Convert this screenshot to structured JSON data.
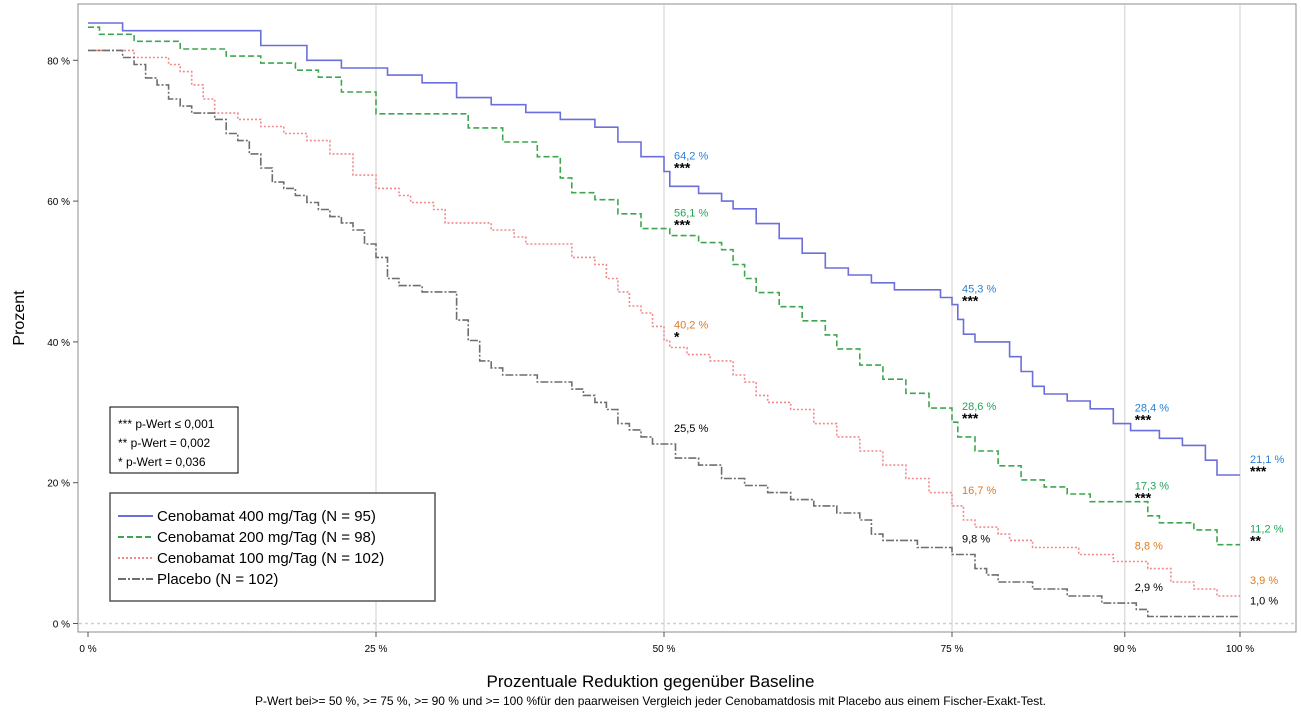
{
  "chart_data": {
    "type": "line",
    "ylabel": "Prozent",
    "xlabel": "Prozentuale Reduktion gegenüber Baseline",
    "footnote": "P-Wert bei>= 50 %, >= 75 %, >= 90 % und >= 100 %für den paarweisen Vergleich jeder Cenobamatdosis mit Placebo aus einem Fischer-Exakt-Test.",
    "x_ticks": [
      {
        "value": 0,
        "label": "0 %"
      },
      {
        "value": 25,
        "label": "25 %"
      },
      {
        "value": 50,
        "label": "50 %"
      },
      {
        "value": 75,
        "label": "75 %"
      },
      {
        "value": 90,
        "label": "90 %"
      },
      {
        "value": 100,
        "label": "100 %"
      }
    ],
    "y_ticks": [
      {
        "value": 0,
        "label": "0 %"
      },
      {
        "value": 20,
        "label": "20 %"
      },
      {
        "value": 40,
        "label": "40 %"
      },
      {
        "value": 60,
        "label": "60 %"
      },
      {
        "value": 80,
        "label": "80 %"
      }
    ],
    "xlim": [
      0,
      100
    ],
    "ylim": [
      0,
      86
    ],
    "vertical_gridlines_at": [
      25,
      50,
      75,
      90,
      100
    ],
    "significance_legend": [
      "*** p-Wert ≤ 0,001",
      "** p-Wert = 0,002",
      "* p-Wert = 0,036"
    ],
    "legend_position": "bottom-left",
    "series": [
      {
        "name": "Cenobamat 400 mg/Tag (N = 95)",
        "color": "#6b6fdb",
        "dash": "solid",
        "points": [
          [
            0,
            85.3
          ],
          [
            3,
            84.2
          ],
          [
            15,
            82.1
          ],
          [
            19,
            80
          ],
          [
            22,
            78.9
          ],
          [
            26,
            77.9
          ],
          [
            29,
            76.8
          ],
          [
            32,
            74.7
          ],
          [
            35,
            73.7
          ],
          [
            38,
            72.6
          ],
          [
            41,
            71.6
          ],
          [
            44,
            70.5
          ],
          [
            46,
            68.4
          ],
          [
            48,
            66.3
          ],
          [
            50,
            64.2
          ],
          [
            50.5,
            62.1
          ],
          [
            53,
            61.1
          ],
          [
            55,
            60
          ],
          [
            56,
            58.9
          ],
          [
            58,
            56.8
          ],
          [
            60,
            54.7
          ],
          [
            62,
            52.6
          ],
          [
            64,
            50.5
          ],
          [
            66,
            49.5
          ],
          [
            68,
            48.4
          ],
          [
            70,
            47.4
          ],
          [
            74,
            46.3
          ],
          [
            75,
            45.3
          ],
          [
            75.5,
            43.2
          ],
          [
            76,
            41.1
          ],
          [
            77,
            40
          ],
          [
            80,
            37.9
          ],
          [
            81,
            35.8
          ],
          [
            82,
            33.7
          ],
          [
            83,
            32.6
          ],
          [
            85,
            31.6
          ],
          [
            87,
            30.5
          ],
          [
            89,
            28.4
          ],
          [
            90,
            28.4
          ],
          [
            90.5,
            27.4
          ],
          [
            93,
            26.3
          ],
          [
            95,
            25.3
          ],
          [
            97,
            23.2
          ],
          [
            98,
            21.1
          ],
          [
            100,
            21.1
          ]
        ]
      },
      {
        "name": "Cenobamat 200 mg/Tag (N = 98)",
        "color": "#3fa64f",
        "dash": "dashed",
        "points": [
          [
            0,
            84.7
          ],
          [
            1,
            83.7
          ],
          [
            4,
            82.7
          ],
          [
            8,
            81.6
          ],
          [
            12,
            80.6
          ],
          [
            15,
            79.6
          ],
          [
            18,
            78.6
          ],
          [
            20,
            77.6
          ],
          [
            22,
            75.5
          ],
          [
            25,
            72.4
          ],
          [
            26,
            72.4
          ],
          [
            30,
            72.4
          ],
          [
            33,
            70.4
          ],
          [
            36,
            68.4
          ],
          [
            39,
            66.3
          ],
          [
            41,
            63.3
          ],
          [
            42,
            61.2
          ],
          [
            44,
            60.2
          ],
          [
            46,
            58.2
          ],
          [
            48,
            56.1
          ],
          [
            50,
            56.1
          ],
          [
            50.5,
            55.1
          ],
          [
            53,
            54.1
          ],
          [
            55,
            53.1
          ],
          [
            56,
            51
          ],
          [
            57,
            49
          ],
          [
            58,
            47
          ],
          [
            60,
            45
          ],
          [
            62,
            43
          ],
          [
            64,
            41
          ],
          [
            65,
            39
          ],
          [
            67,
            36.7
          ],
          [
            69,
            34.7
          ],
          [
            71,
            32.7
          ],
          [
            73,
            30.6
          ],
          [
            75,
            28.6
          ],
          [
            75.5,
            26.5
          ],
          [
            77,
            24.5
          ],
          [
            79,
            22.4
          ],
          [
            81,
            20.4
          ],
          [
            83,
            19.4
          ],
          [
            85,
            18.4
          ],
          [
            87,
            17.3
          ],
          [
            90,
            17.3
          ],
          [
            92,
            15.3
          ],
          [
            93,
            14.3
          ],
          [
            96,
            13.3
          ],
          [
            98,
            11.2
          ],
          [
            100,
            11.2
          ]
        ]
      },
      {
        "name": "Cenobamat 100 mg/Tag (N = 102)",
        "color": "#f08a8a",
        "dash": "dotted",
        "points": [
          [
            0,
            81.4
          ],
          [
            4,
            80.4
          ],
          [
            7,
            79.4
          ],
          [
            8,
            78.4
          ],
          [
            9,
            76.5
          ],
          [
            10,
            74.5
          ],
          [
            11,
            72.5
          ],
          [
            13,
            71.6
          ],
          [
            15,
            70.6
          ],
          [
            17,
            69.6
          ],
          [
            19,
            68.6
          ],
          [
            21,
            66.7
          ],
          [
            23,
            63.7
          ],
          [
            25,
            61.8
          ],
          [
            27,
            60.8
          ],
          [
            28,
            59.8
          ],
          [
            30,
            58.8
          ],
          [
            31,
            56.9
          ],
          [
            33,
            56.9
          ],
          [
            35,
            55.9
          ],
          [
            37,
            54.9
          ],
          [
            38,
            53.9
          ],
          [
            40,
            53.9
          ],
          [
            42,
            52
          ],
          [
            44,
            51
          ],
          [
            45,
            49
          ],
          [
            46,
            47.1
          ],
          [
            47,
            45.1
          ],
          [
            48,
            44.1
          ],
          [
            49,
            42.2
          ],
          [
            50,
            40.2
          ],
          [
            50.5,
            39.2
          ],
          [
            52,
            38.2
          ],
          [
            54,
            37.3
          ],
          [
            56,
            35.3
          ],
          [
            57,
            34.3
          ],
          [
            58,
            32.4
          ],
          [
            59,
            31.4
          ],
          [
            61,
            30.4
          ],
          [
            63,
            28.4
          ],
          [
            65,
            26.5
          ],
          [
            67,
            24.5
          ],
          [
            69,
            22.5
          ],
          [
            71,
            20.6
          ],
          [
            73,
            18.6
          ],
          [
            75,
            16.7
          ],
          [
            76,
            14.7
          ],
          [
            77,
            13.7
          ],
          [
            79,
            12.7
          ],
          [
            80,
            11.8
          ],
          [
            82,
            10.8
          ],
          [
            86,
            9.8
          ],
          [
            89,
            8.8
          ],
          [
            92,
            7.8
          ],
          [
            94,
            5.9
          ],
          [
            96,
            4.9
          ],
          [
            98,
            3.9
          ],
          [
            100,
            3.9
          ]
        ]
      },
      {
        "name": "Placebo (N = 102)",
        "color": "#6e6e6e",
        "dash": "dashdot",
        "points": [
          [
            0,
            81.4
          ],
          [
            3,
            80.4
          ],
          [
            4,
            79.4
          ],
          [
            5,
            77.5
          ],
          [
            6,
            76.5
          ],
          [
            7,
            74.5
          ],
          [
            8,
            73.5
          ],
          [
            9,
            72.5
          ],
          [
            11,
            71.6
          ],
          [
            12,
            69.6
          ],
          [
            13,
            68.6
          ],
          [
            14,
            66.7
          ],
          [
            15,
            64.7
          ],
          [
            16,
            62.7
          ],
          [
            17,
            61.8
          ],
          [
            18,
            60.8
          ],
          [
            19,
            59.8
          ],
          [
            20,
            58.8
          ],
          [
            21,
            57.8
          ],
          [
            22,
            56.9
          ],
          [
            23,
            55.9
          ],
          [
            24,
            53.9
          ],
          [
            25,
            52
          ],
          [
            26,
            49
          ],
          [
            27,
            48
          ],
          [
            29,
            47.1
          ],
          [
            31,
            47.1
          ],
          [
            32,
            43.1
          ],
          [
            33,
            40.2
          ],
          [
            34,
            37.3
          ],
          [
            35,
            36.3
          ],
          [
            36,
            35.3
          ],
          [
            37,
            35.3
          ],
          [
            39,
            34.3
          ],
          [
            41,
            34.3
          ],
          [
            42,
            33.3
          ],
          [
            43,
            32.4
          ],
          [
            44,
            31.4
          ],
          [
            45,
            30.4
          ],
          [
            46,
            28.4
          ],
          [
            47,
            27.5
          ],
          [
            48,
            26.5
          ],
          [
            49,
            25.5
          ],
          [
            50,
            25.5
          ],
          [
            51,
            23.5
          ],
          [
            53,
            22.5
          ],
          [
            55,
            20.6
          ],
          [
            57,
            19.6
          ],
          [
            59,
            18.6
          ],
          [
            61,
            17.6
          ],
          [
            63,
            16.7
          ],
          [
            65,
            15.7
          ],
          [
            67,
            14.7
          ],
          [
            68,
            12.7
          ],
          [
            69,
            11.8
          ],
          [
            72,
            10.8
          ],
          [
            75,
            9.8
          ],
          [
            77,
            7.8
          ],
          [
            78,
            6.9
          ],
          [
            79,
            5.9
          ],
          [
            82,
            4.9
          ],
          [
            85,
            3.9
          ],
          [
            88,
            2.9
          ],
          [
            90,
            2.9
          ],
          [
            91,
            2
          ],
          [
            92,
            1
          ],
          [
            100,
            1
          ]
        ]
      }
    ],
    "annotations": [
      {
        "x": 50,
        "y": 64.2,
        "label": "64,2 %",
        "stars": "***",
        "series": 0
      },
      {
        "x": 50,
        "y": 56.1,
        "label": "56,1 %",
        "stars": "***",
        "series": 1
      },
      {
        "x": 50,
        "y": 40.2,
        "label": "40,2 %",
        "stars": "*",
        "series": 2
      },
      {
        "x": 50,
        "y": 25.5,
        "label": "25,5 %",
        "stars": "",
        "series": 3
      },
      {
        "x": 75,
        "y": 45.3,
        "label": "45,3 %",
        "stars": "***",
        "series": 0
      },
      {
        "x": 75,
        "y": 28.6,
        "label": "28,6 %",
        "stars": "***",
        "series": 1
      },
      {
        "x": 75,
        "y": 16.7,
        "label": "16,7 %",
        "stars": "",
        "series": 2
      },
      {
        "x": 75,
        "y": 9.8,
        "label": "9,8 %",
        "stars": "",
        "series": 3
      },
      {
        "x": 90,
        "y": 28.4,
        "label": "28,4 %",
        "stars": "***",
        "series": 0
      },
      {
        "x": 90,
        "y": 17.3,
        "label": "17,3 %",
        "stars": "***",
        "series": 1
      },
      {
        "x": 90,
        "y": 8.8,
        "label": "8,8 %",
        "stars": "",
        "series": 2
      },
      {
        "x": 90,
        "y": 2.9,
        "label": "2,9 %",
        "stars": "",
        "series": 3
      },
      {
        "x": 100,
        "y": 21.1,
        "label": "21,1 %",
        "stars": "***",
        "series": 0
      },
      {
        "x": 100,
        "y": 11.2,
        "label": "11,2 %",
        "stars": "**",
        "series": 1
      },
      {
        "x": 100,
        "y": 3.9,
        "label": "3,9 %",
        "stars": "",
        "series": 2
      },
      {
        "x": 100,
        "y": 1.0,
        "label": "1,0 %",
        "stars": "",
        "series": 3
      }
    ],
    "annotation_colors": [
      "#2a7fd4",
      "#22a559",
      "#e07a1f",
      "#000000"
    ]
  }
}
